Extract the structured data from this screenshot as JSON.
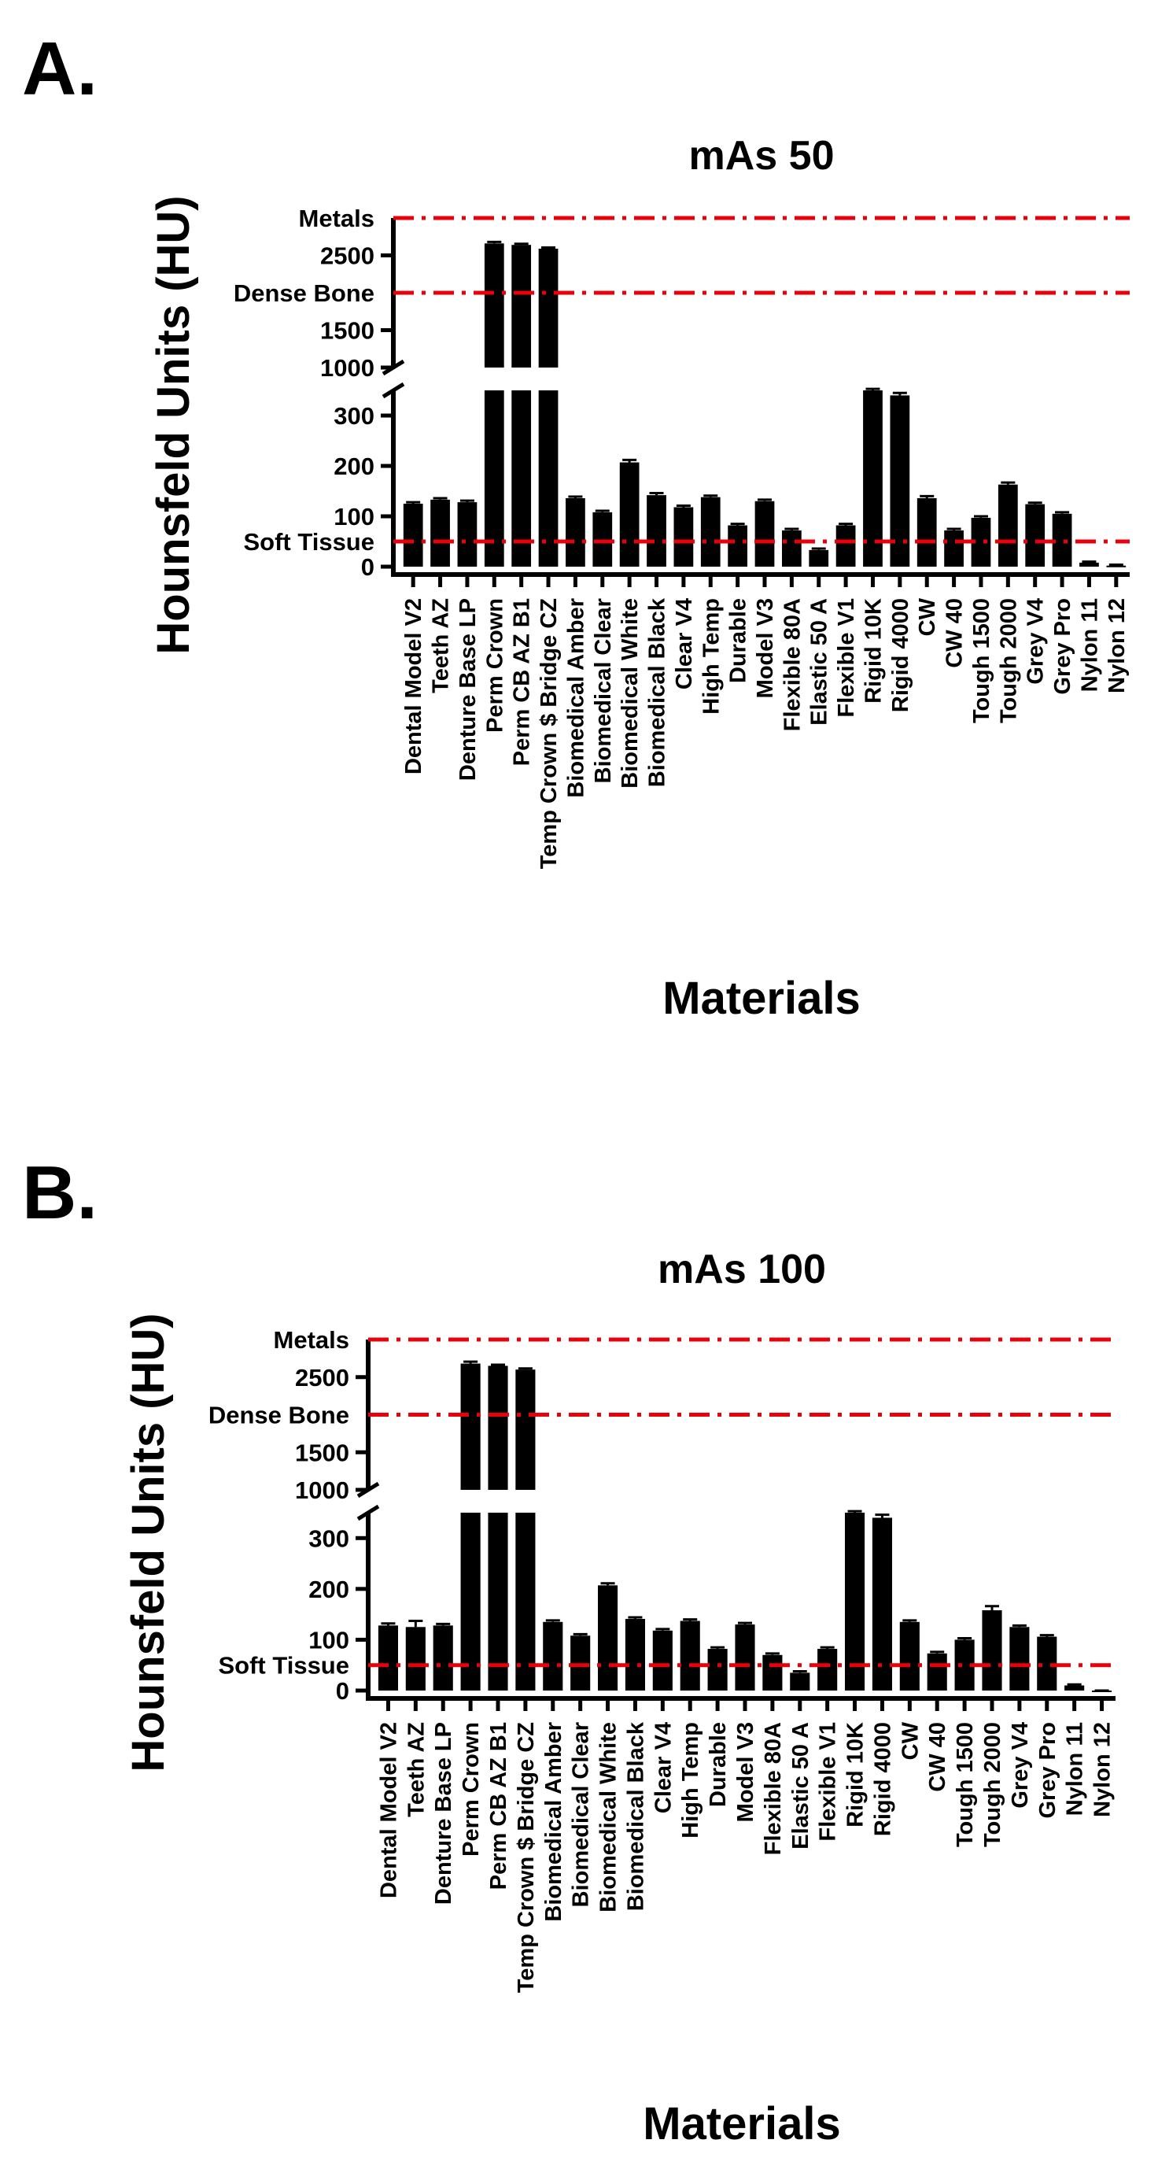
{
  "figure": {
    "panels": [
      "A.",
      "B."
    ]
  },
  "colors": {
    "bar": "#000000",
    "reference_line": "#e8000b",
    "axis": "#000000"
  },
  "chart_data": [
    {
      "type": "bar",
      "panel": "A.",
      "title": "mAs 50",
      "xlabel": "Materials",
      "ylabel": "Hounsfeld Units (HU)",
      "axis_break": {
        "lower_range": [
          0,
          350
        ],
        "upper_range": [
          1000,
          3000
        ]
      },
      "ytick_labels_lower": [
        "0",
        "100",
        "200",
        "300"
      ],
      "ytick_labels_upper": [
        "1000",
        "1500",
        "2500"
      ],
      "reference_lines": [
        {
          "label": "Soft Tissue",
          "value": 50
        },
        {
          "label": "Dense Bone",
          "value": 2000
        },
        {
          "label": "Metals",
          "value": 3000
        }
      ],
      "categories": [
        "Dental Model V2",
        "Teeth AZ",
        "Denture Base LP",
        "Perm Crown",
        "Perm CB AZ B1",
        "Temp Crown $ Bridge CZ",
        "Biomedical Amber",
        "Biomedical Clear",
        "Biomedical White",
        "Biomedical Black",
        "Clear V4",
        "High Temp",
        "Durable",
        "Model V3",
        "Flexible 80A",
        "Elastic 50 A",
        "Flexible V1",
        "Rigid 10K",
        "Rigid 4000",
        "CW",
        "CW 40",
        "Tough 1500",
        "Tough 2000",
        "Grey V4",
        "Grey Pro",
        "Nylon 11",
        "Nylon 12"
      ],
      "values": [
        125,
        133,
        128,
        2660,
        2640,
        2590,
        136,
        108,
        207,
        142,
        118,
        138,
        82,
        130,
        72,
        33,
        82,
        350,
        340,
        136,
        72,
        97,
        163,
        124,
        105,
        8,
        2
      ],
      "errors": [
        3,
        3,
        3,
        20,
        15,
        15,
        3,
        3,
        5,
        4,
        3,
        3,
        3,
        3,
        3,
        3,
        3,
        3,
        5,
        4,
        3,
        3,
        4,
        3,
        3,
        2,
        2
      ]
    },
    {
      "type": "bar",
      "panel": "B.",
      "title": "mAs 100",
      "xlabel": "Materials",
      "ylabel": "Hounsfeld Units (HU)",
      "axis_break": {
        "lower_range": [
          0,
          350
        ],
        "upper_range": [
          1000,
          3000
        ]
      },
      "ytick_labels_lower": [
        "0",
        "100",
        "200",
        "300"
      ],
      "ytick_labels_upper": [
        "1000",
        "1500",
        "2500"
      ],
      "reference_lines": [
        {
          "label": "Soft Tissue",
          "value": 50
        },
        {
          "label": "Dense Bone",
          "value": 2000
        },
        {
          "label": "Metals",
          "value": 3000
        }
      ],
      "categories": [
        "Dental Model V2",
        "Teeth AZ",
        "Denture Base LP",
        "Perm Crown",
        "Perm CB AZ B1",
        "Temp Crown $ Bridge CZ",
        "Biomedical Amber",
        "Biomedical Clear",
        "Biomedical White",
        "Biomedical Black",
        "Clear V4",
        "High Temp",
        "Durable",
        "Model V3",
        "Flexible 80A",
        "Elastic 50 A",
        "Flexible V1",
        "Rigid 10K",
        "Rigid 4000",
        "CW",
        "CW 40",
        "Tough 1500",
        "Tough 2000",
        "Grey V4",
        "Grey Pro",
        "Nylon 11",
        "Nylon 12"
      ],
      "values": [
        128,
        125,
        128,
        2680,
        2650,
        2600,
        135,
        108,
        207,
        141,
        118,
        137,
        82,
        130,
        70,
        35,
        82,
        350,
        340,
        135,
        73,
        100,
        158,
        125,
        106,
        10,
        -3
      ],
      "errors": [
        4,
        12,
        3,
        25,
        15,
        15,
        3,
        3,
        4,
        3,
        3,
        3,
        3,
        3,
        3,
        3,
        3,
        3,
        6,
        3,
        3,
        3,
        8,
        3,
        3,
        2,
        3
      ]
    }
  ]
}
